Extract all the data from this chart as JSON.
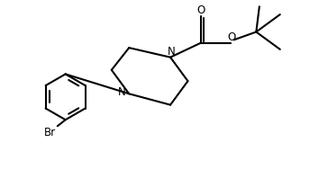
{
  "bg_color": "#ffffff",
  "line_color": "#000000",
  "line_width": 1.5,
  "font_size": 8.5,
  "figsize": [
    3.64,
    1.98
  ],
  "dpi": 100,
  "xlim": [
    0,
    10
  ],
  "ylim": [
    0,
    5.5
  ]
}
